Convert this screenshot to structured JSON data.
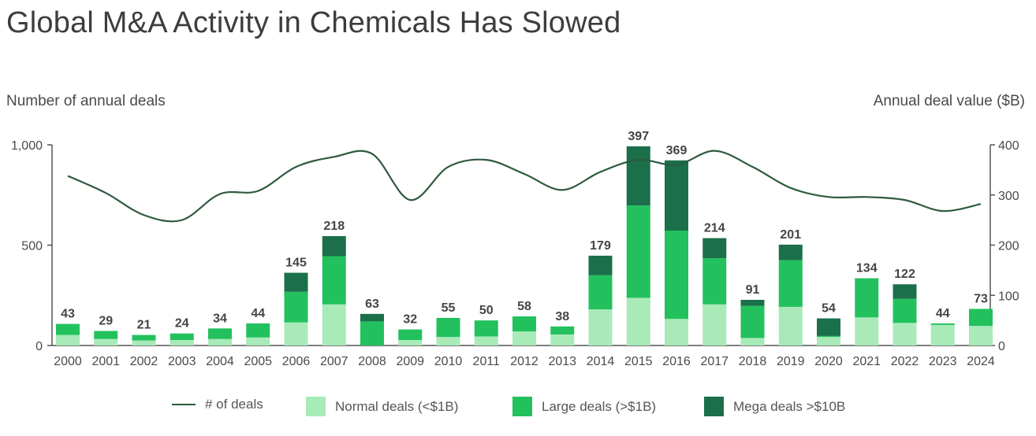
{
  "title": "Global M&A Activity in Chemicals Has Slowed",
  "colors": {
    "normal": "#a8eab8",
    "large": "#22c15e",
    "mega": "#1b6f4a",
    "line": "#2d5a3d",
    "axis": "#555555"
  },
  "chart_data": {
    "type": "bar",
    "stacked": true,
    "left_axis_label": "Number of annual deals",
    "right_axis_label": "Annual deal value ($B)",
    "left_axis_ticks": [
      "1,000",
      "500",
      "0"
    ],
    "right_axis_ticks": [
      "400",
      "300",
      "200",
      "100",
      "0"
    ],
    "ylim_left": [
      0,
      1000
    ],
    "ylim_right": [
      0,
      400
    ],
    "categories": [
      "2000",
      "2001",
      "2002",
      "2003",
      "2004",
      "2005",
      "2006",
      "2007",
      "2008",
      "2009",
      "2010",
      "2011",
      "2012",
      "2013",
      "2014",
      "2015",
      "2016",
      "2017",
      "2018",
      "2019",
      "2020",
      "2021",
      "2022",
      "2023",
      "2024"
    ],
    "totals": [
      43,
      29,
      21,
      24,
      34,
      44,
      145,
      218,
      63,
      32,
      55,
      50,
      58,
      38,
      179,
      397,
      369,
      214,
      91,
      201,
      54,
      134,
      122,
      44,
      73
    ],
    "series": [
      {
        "name": "Normal deals (<$1B)",
        "axis": "right",
        "values": [
          21,
          13,
          10,
          11,
          13,
          16,
          46,
          82,
          0,
          11,
          17,
          18,
          28,
          22,
          72,
          95,
          53,
          82,
          15,
          77,
          17,
          56,
          45,
          41,
          39
        ]
      },
      {
        "name": "Large deals (>$1B)",
        "axis": "right",
        "values": [
          22,
          16,
          11,
          13,
          21,
          28,
          61,
          96,
          48,
          21,
          38,
          32,
          30,
          16,
          68,
          184,
          176,
          92,
          64,
          93,
          2,
          78,
          48,
          3,
          34
        ]
      },
      {
        "name": "Mega deals >$10B",
        "axis": "right",
        "values": [
          0,
          0,
          0,
          0,
          0,
          0,
          38,
          40,
          15,
          0,
          0,
          0,
          0,
          0,
          39,
          118,
          140,
          40,
          12,
          31,
          35,
          0,
          29,
          0,
          0
        ]
      },
      {
        "name": "# of deals",
        "axis": "left",
        "type": "line",
        "values": [
          845,
          760,
          650,
          625,
          755,
          770,
          890,
          940,
          955,
          725,
          890,
          925,
          855,
          775,
          865,
          925,
          900,
          970,
          890,
          785,
          740,
          740,
          725,
          670,
          705
        ]
      }
    ]
  }
}
